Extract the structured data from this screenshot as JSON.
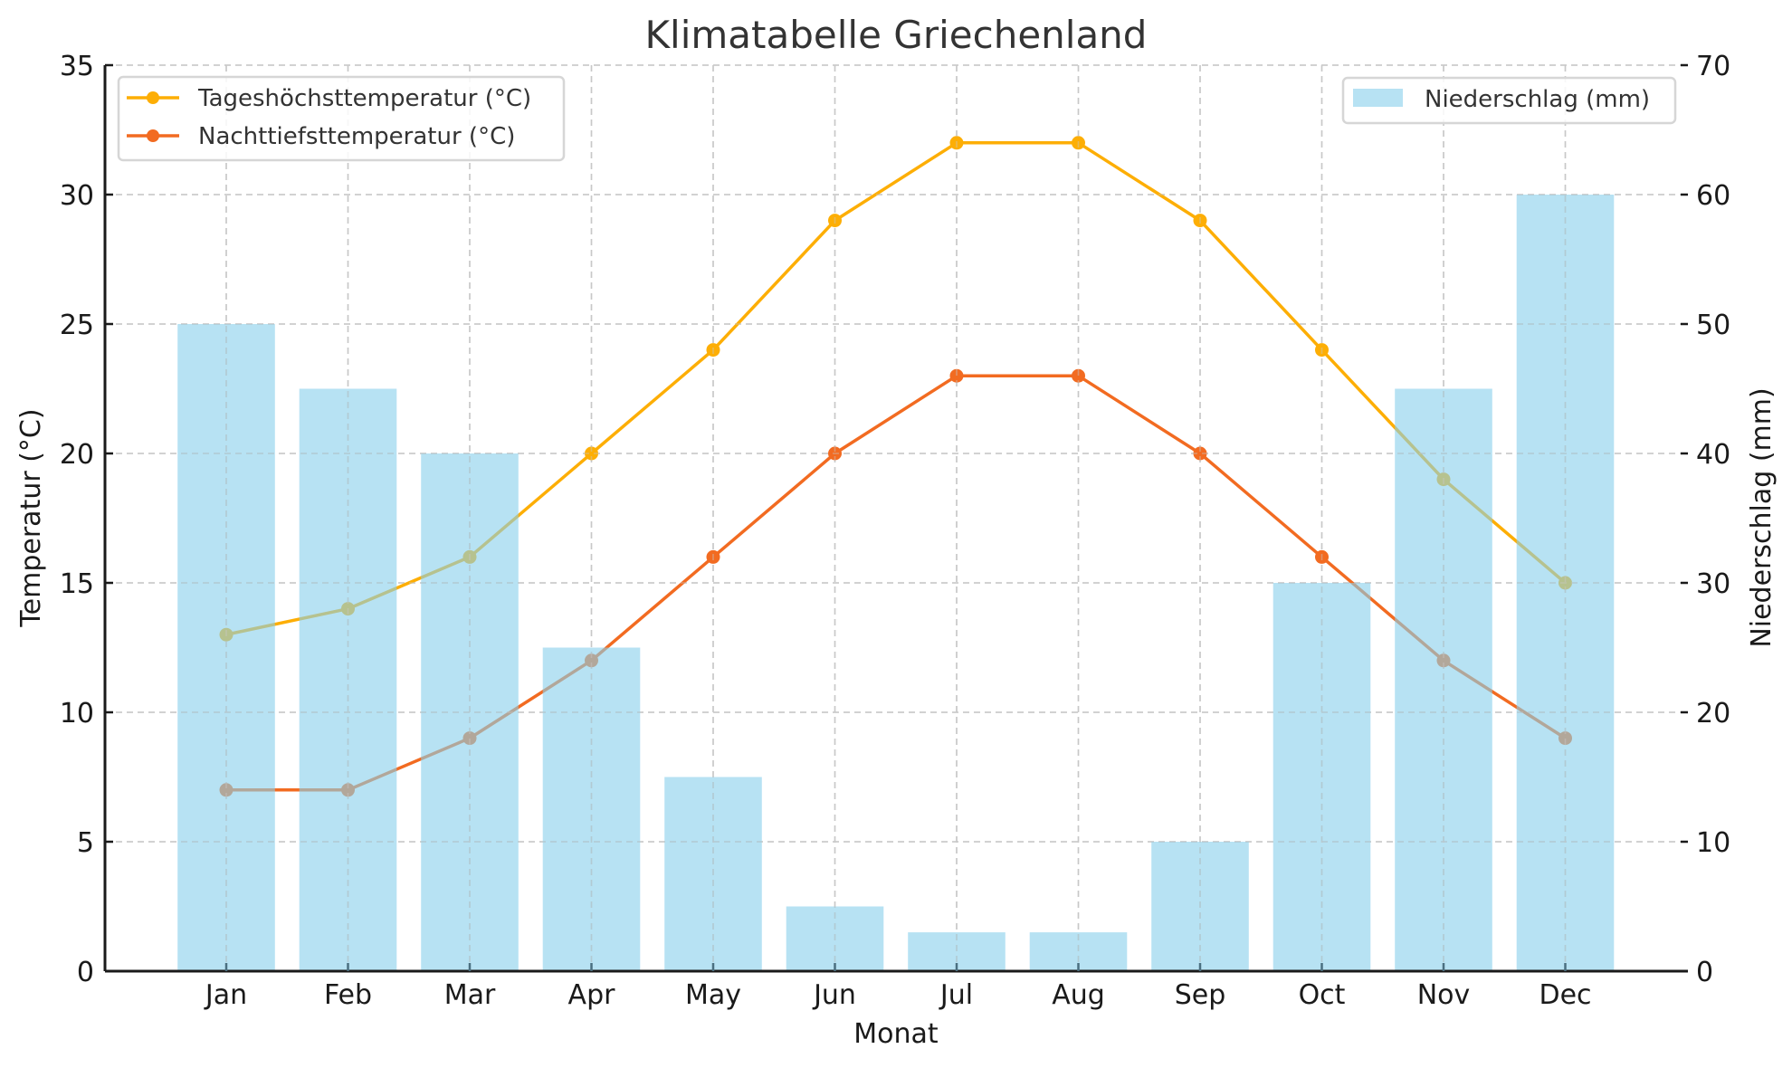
{
  "chart_data": {
    "type": "bar+line",
    "title": "Klimatabelle Griechenland",
    "xlabel": "Monat",
    "ylabel_left": "Temperatur (°C)",
    "ylabel_right": "Niederschlag (mm)",
    "categories": [
      "Jan",
      "Feb",
      "Mar",
      "Apr",
      "May",
      "Jun",
      "Jul",
      "Aug",
      "Sep",
      "Oct",
      "Nov",
      "Dec"
    ],
    "ylim_left": [
      0,
      35
    ],
    "yticks_left": [
      0,
      5,
      10,
      15,
      20,
      25,
      30,
      35
    ],
    "ylim_right": [
      0,
      70
    ],
    "yticks_right": [
      0,
      10,
      20,
      30,
      40,
      50,
      60,
      70
    ],
    "grid": true,
    "series": [
      {
        "name": "Tageshöchsttemperatur (°C)",
        "type": "line",
        "axis": "left",
        "color": "#fdae05",
        "marker": "circle",
        "values": [
          13,
          14,
          16,
          20,
          24,
          29,
          32,
          32,
          29,
          24,
          19,
          15
        ]
      },
      {
        "name": "Nachttiefsttemperatur (°C)",
        "type": "line",
        "axis": "left",
        "color": "#f26b21",
        "marker": "circle",
        "values": [
          7,
          7,
          9,
          12,
          16,
          20,
          23,
          23,
          20,
          16,
          12,
          9
        ]
      },
      {
        "name": "Niederschlag (mm)",
        "type": "bar",
        "axis": "right",
        "color": "#87ceeb",
        "opacity": 0.6,
        "values": [
          50,
          45,
          40,
          25,
          15,
          5,
          3,
          3,
          10,
          30,
          45,
          60
        ]
      }
    ],
    "legends": [
      {
        "placement": "top-left",
        "entries": [
          "Tageshöchsttemperatur (°C)",
          "Nachttiefsttemperatur (°C)"
        ]
      },
      {
        "placement": "top-right",
        "entries": [
          "Niederschlag (mm)"
        ]
      }
    ]
  }
}
